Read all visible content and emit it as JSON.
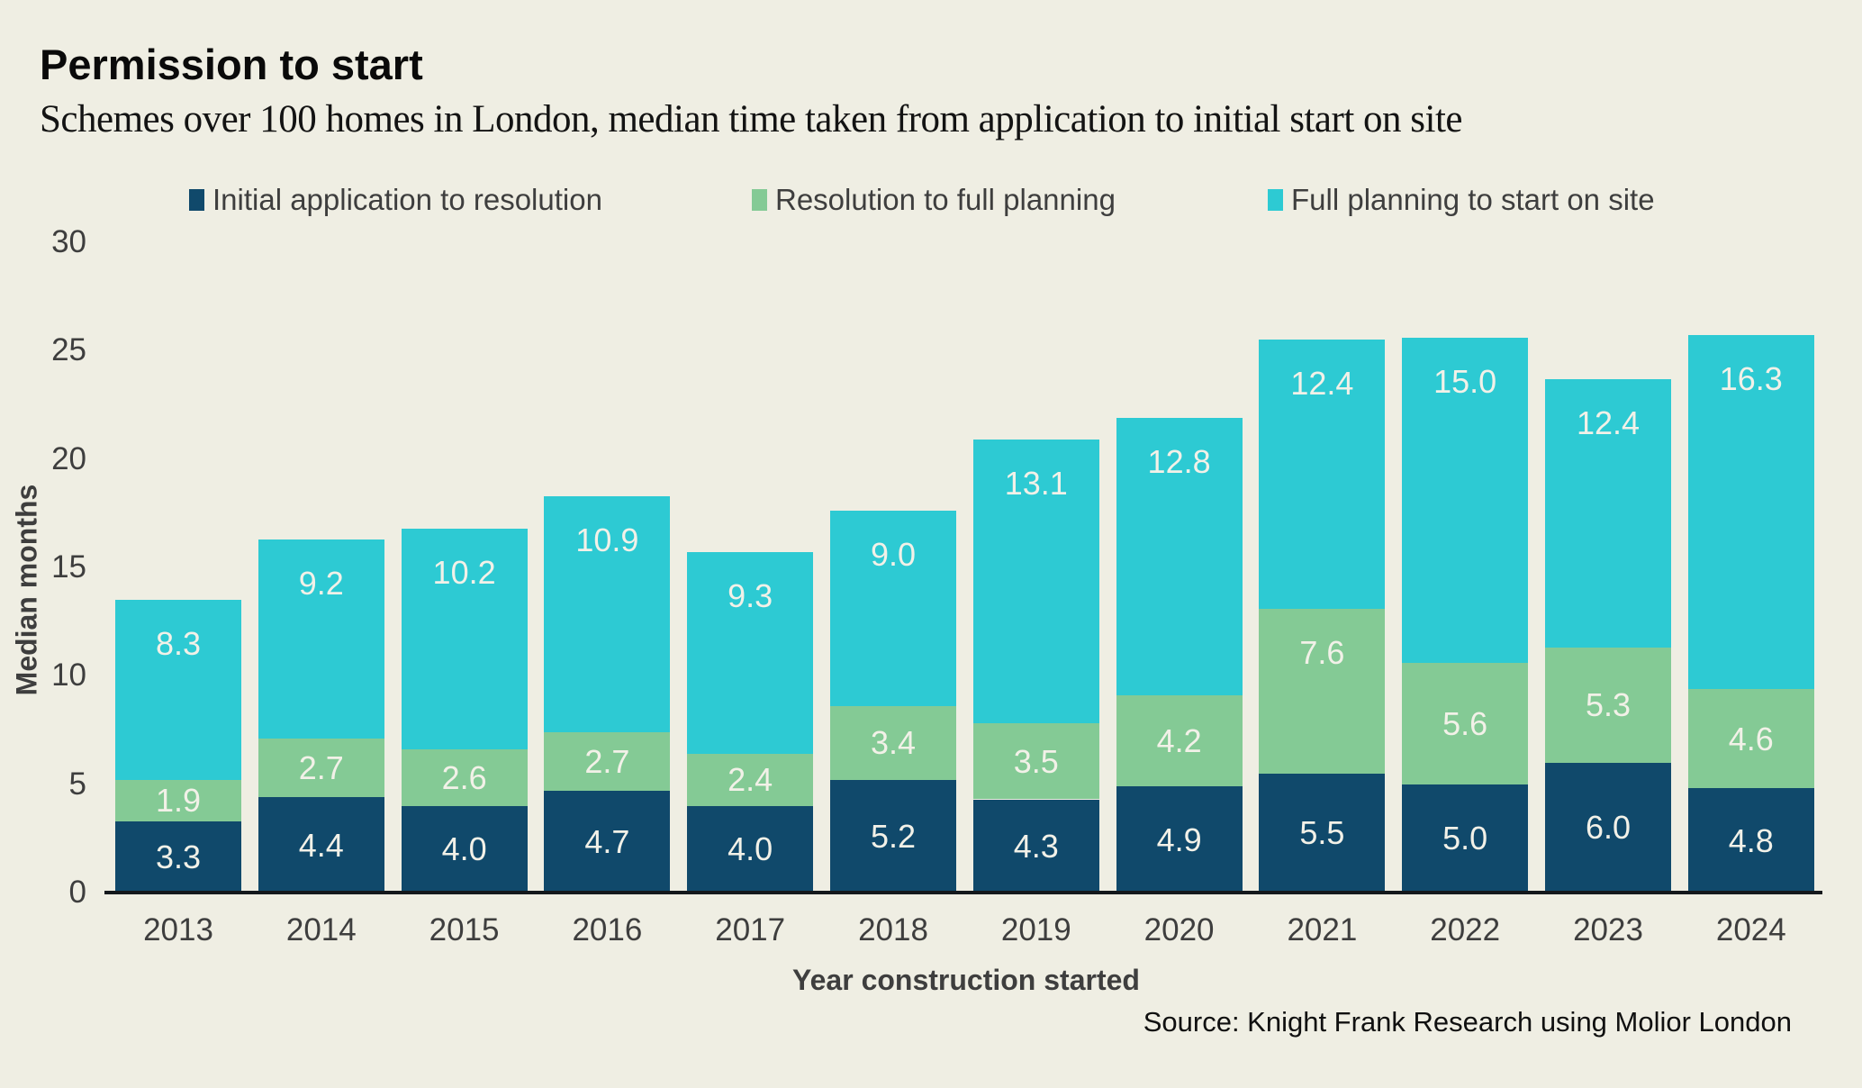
{
  "header": {
    "title": "Permission to start",
    "subtitle": "Schemes over 100 homes in London, median time taken from application to initial start on site"
  },
  "legend": [
    {
      "label": "Initial application to resolution",
      "color": "#10496b"
    },
    {
      "label": "Resolution to full planning",
      "color": "#84ca95"
    },
    {
      "label": "Full planning to start on site",
      "color": "#2dcad3"
    }
  ],
  "axes": {
    "y_label": "Median months",
    "x_label": "Year construction started",
    "y_ticks": [
      0,
      5,
      10,
      15,
      20,
      25,
      30
    ],
    "y_max": 30,
    "grid": "off"
  },
  "source": "Source: Knight Frank Research using Molior London",
  "colors": {
    "background": "#efeee3",
    "series_1": "#10496b",
    "series_2": "#84ca95",
    "series_3": "#2dcad3",
    "segment_label": "#f2f1e8",
    "axis_text": "#3e3e3e",
    "axis_line": "#14181c"
  },
  "chart_data": {
    "type": "bar",
    "stacked": true,
    "title": "Permission to start",
    "subtitle": "Schemes over 100 homes in London, median time taken from application to initial start on site",
    "xlabel": "Year construction started",
    "ylabel": "Median months",
    "ylim": [
      0,
      30
    ],
    "legend_position": "top",
    "categories": [
      "2013",
      "2014",
      "2015",
      "2016",
      "2017",
      "2018",
      "2019",
      "2020",
      "2021",
      "2022",
      "2023",
      "2024"
    ],
    "series": [
      {
        "name": "Initial application to resolution",
        "color": "#10496b",
        "values": [
          3.3,
          4.4,
          4.0,
          4.7,
          4.0,
          5.2,
          4.3,
          4.9,
          5.5,
          5.0,
          6.0,
          4.8
        ]
      },
      {
        "name": "Resolution to full planning",
        "color": "#84ca95",
        "values": [
          1.9,
          2.7,
          2.6,
          2.7,
          2.4,
          3.4,
          3.5,
          4.2,
          7.6,
          5.6,
          5.3,
          4.6
        ]
      },
      {
        "name": "Full planning to start on site",
        "color": "#2dcad3",
        "values": [
          8.3,
          9.2,
          10.2,
          10.9,
          9.3,
          9.0,
          13.1,
          12.8,
          12.4,
          15.0,
          12.4,
          16.3
        ]
      }
    ]
  }
}
